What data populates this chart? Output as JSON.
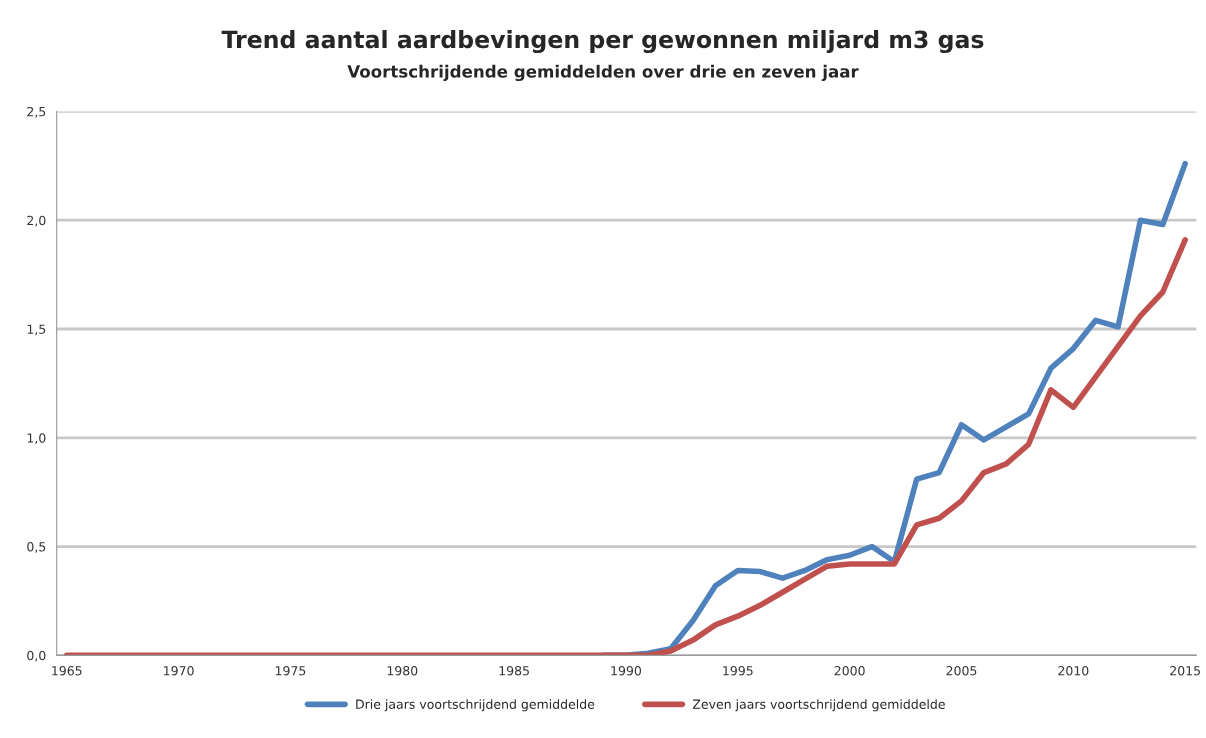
{
  "chart_data": {
    "type": "line",
    "title": "Trend aantal aardbevingen per gewonnen miljard m3 gas",
    "subtitle": "Voortschrijdende gemiddelden over drie en zeven jaar",
    "x": [
      1965,
      1966,
      1967,
      1968,
      1969,
      1970,
      1971,
      1972,
      1973,
      1974,
      1975,
      1976,
      1977,
      1978,
      1979,
      1980,
      1981,
      1982,
      1983,
      1984,
      1985,
      1986,
      1987,
      1988,
      1989,
      1990,
      1991,
      1992,
      1993,
      1994,
      1995,
      1996,
      1997,
      1998,
      1999,
      2000,
      2001,
      2002,
      2003,
      2004,
      2005,
      2006,
      2007,
      2008,
      2009,
      2010,
      2011,
      2012,
      2013,
      2014,
      2015
    ],
    "series": [
      {
        "name": "Drie jaars voortschrijdend gemiddelde",
        "color": "#4f81bd",
        "values": [
          null,
          null,
          null,
          null,
          null,
          null,
          null,
          null,
          null,
          null,
          null,
          null,
          null,
          null,
          null,
          null,
          null,
          null,
          null,
          null,
          null,
          null,
          null,
          null,
          0,
          0,
          0.01,
          0.03,
          0.16,
          0.32,
          0.39,
          0.385,
          0.355,
          0.39,
          0.44,
          0.46,
          0.5,
          0.43,
          0.81,
          0.84,
          1.06,
          0.99,
          1.05,
          1.11,
          1.32,
          1.41,
          1.54,
          1.51,
          2.0,
          1.98,
          2.26
        ]
      },
      {
        "name": "Zeven jaars voortschrijdend gemiddelde",
        "color": "#c0504d",
        "values": [
          0,
          0,
          0,
          0,
          0,
          0,
          0,
          0,
          0,
          0,
          0,
          0,
          0,
          0,
          0,
          0,
          0,
          0,
          0,
          0,
          0,
          0,
          0,
          0,
          0,
          0,
          0,
          0.02,
          0.07,
          0.14,
          0.18,
          0.23,
          0.29,
          0.35,
          0.41,
          0.42,
          0.42,
          0.42,
          0.6,
          0.63,
          0.71,
          0.84,
          0.88,
          0.97,
          1.22,
          1.14,
          1.28,
          1.42,
          1.56,
          1.67,
          1.91
        ]
      }
    ],
    "xlim": [
      1964.55,
      2015.5
    ],
    "xticks": [
      1965,
      1970,
      1975,
      1980,
      1985,
      1990,
      1995,
      2000,
      2005,
      2010,
      2015
    ],
    "ylim": [
      0,
      2.5
    ],
    "yticks": [
      {
        "value": 0,
        "label": "0,0"
      },
      {
        "value": 0.5,
        "label": "0,5"
      },
      {
        "value": 1.0,
        "label": "1,0"
      },
      {
        "value": 1.5,
        "label": "1,5"
      },
      {
        "value": 2.0,
        "label": "2,0"
      },
      {
        "value": 2.5,
        "label": "2,5"
      }
    ],
    "grid": "y",
    "legend": "bottom",
    "marker": "none",
    "line_style": "solid"
  }
}
